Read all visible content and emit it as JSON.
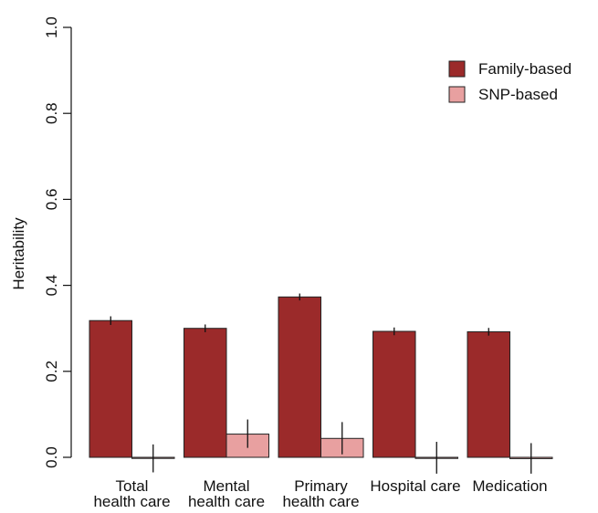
{
  "chart_data": {
    "type": "bar",
    "ylabel": "Heritability",
    "ylim": [
      0,
      1.0
    ],
    "yticks": [
      "0.0",
      "0.2",
      "0.4",
      "0.6",
      "0.8",
      "1.0"
    ],
    "categories": [
      [
        "Total",
        "health care"
      ],
      [
        "Mental",
        "health care"
      ],
      [
        "Primary",
        "health care"
      ],
      [
        "Hospital care"
      ],
      [
        "Medication"
      ]
    ],
    "series": [
      {
        "name": "Family-based",
        "color": "#9b2a2a",
        "values": [
          0.318,
          0.3,
          0.373,
          0.293,
          0.292
        ],
        "ci_low": [
          0.308,
          0.291,
          0.365,
          0.284,
          0.283
        ],
        "ci_high": [
          0.328,
          0.309,
          0.381,
          0.302,
          0.301
        ]
      },
      {
        "name": "SNP-based",
        "color": "#e8a0a0",
        "values": [
          -0.002,
          0.054,
          0.044,
          -0.001,
          -0.003
        ],
        "ci_low": [
          -0.035,
          0.022,
          0.007,
          -0.038,
          -0.038
        ],
        "ci_high": [
          0.03,
          0.088,
          0.082,
          0.036,
          0.033
        ]
      }
    ],
    "legend": {
      "position": "top-right"
    },
    "grid": false
  }
}
